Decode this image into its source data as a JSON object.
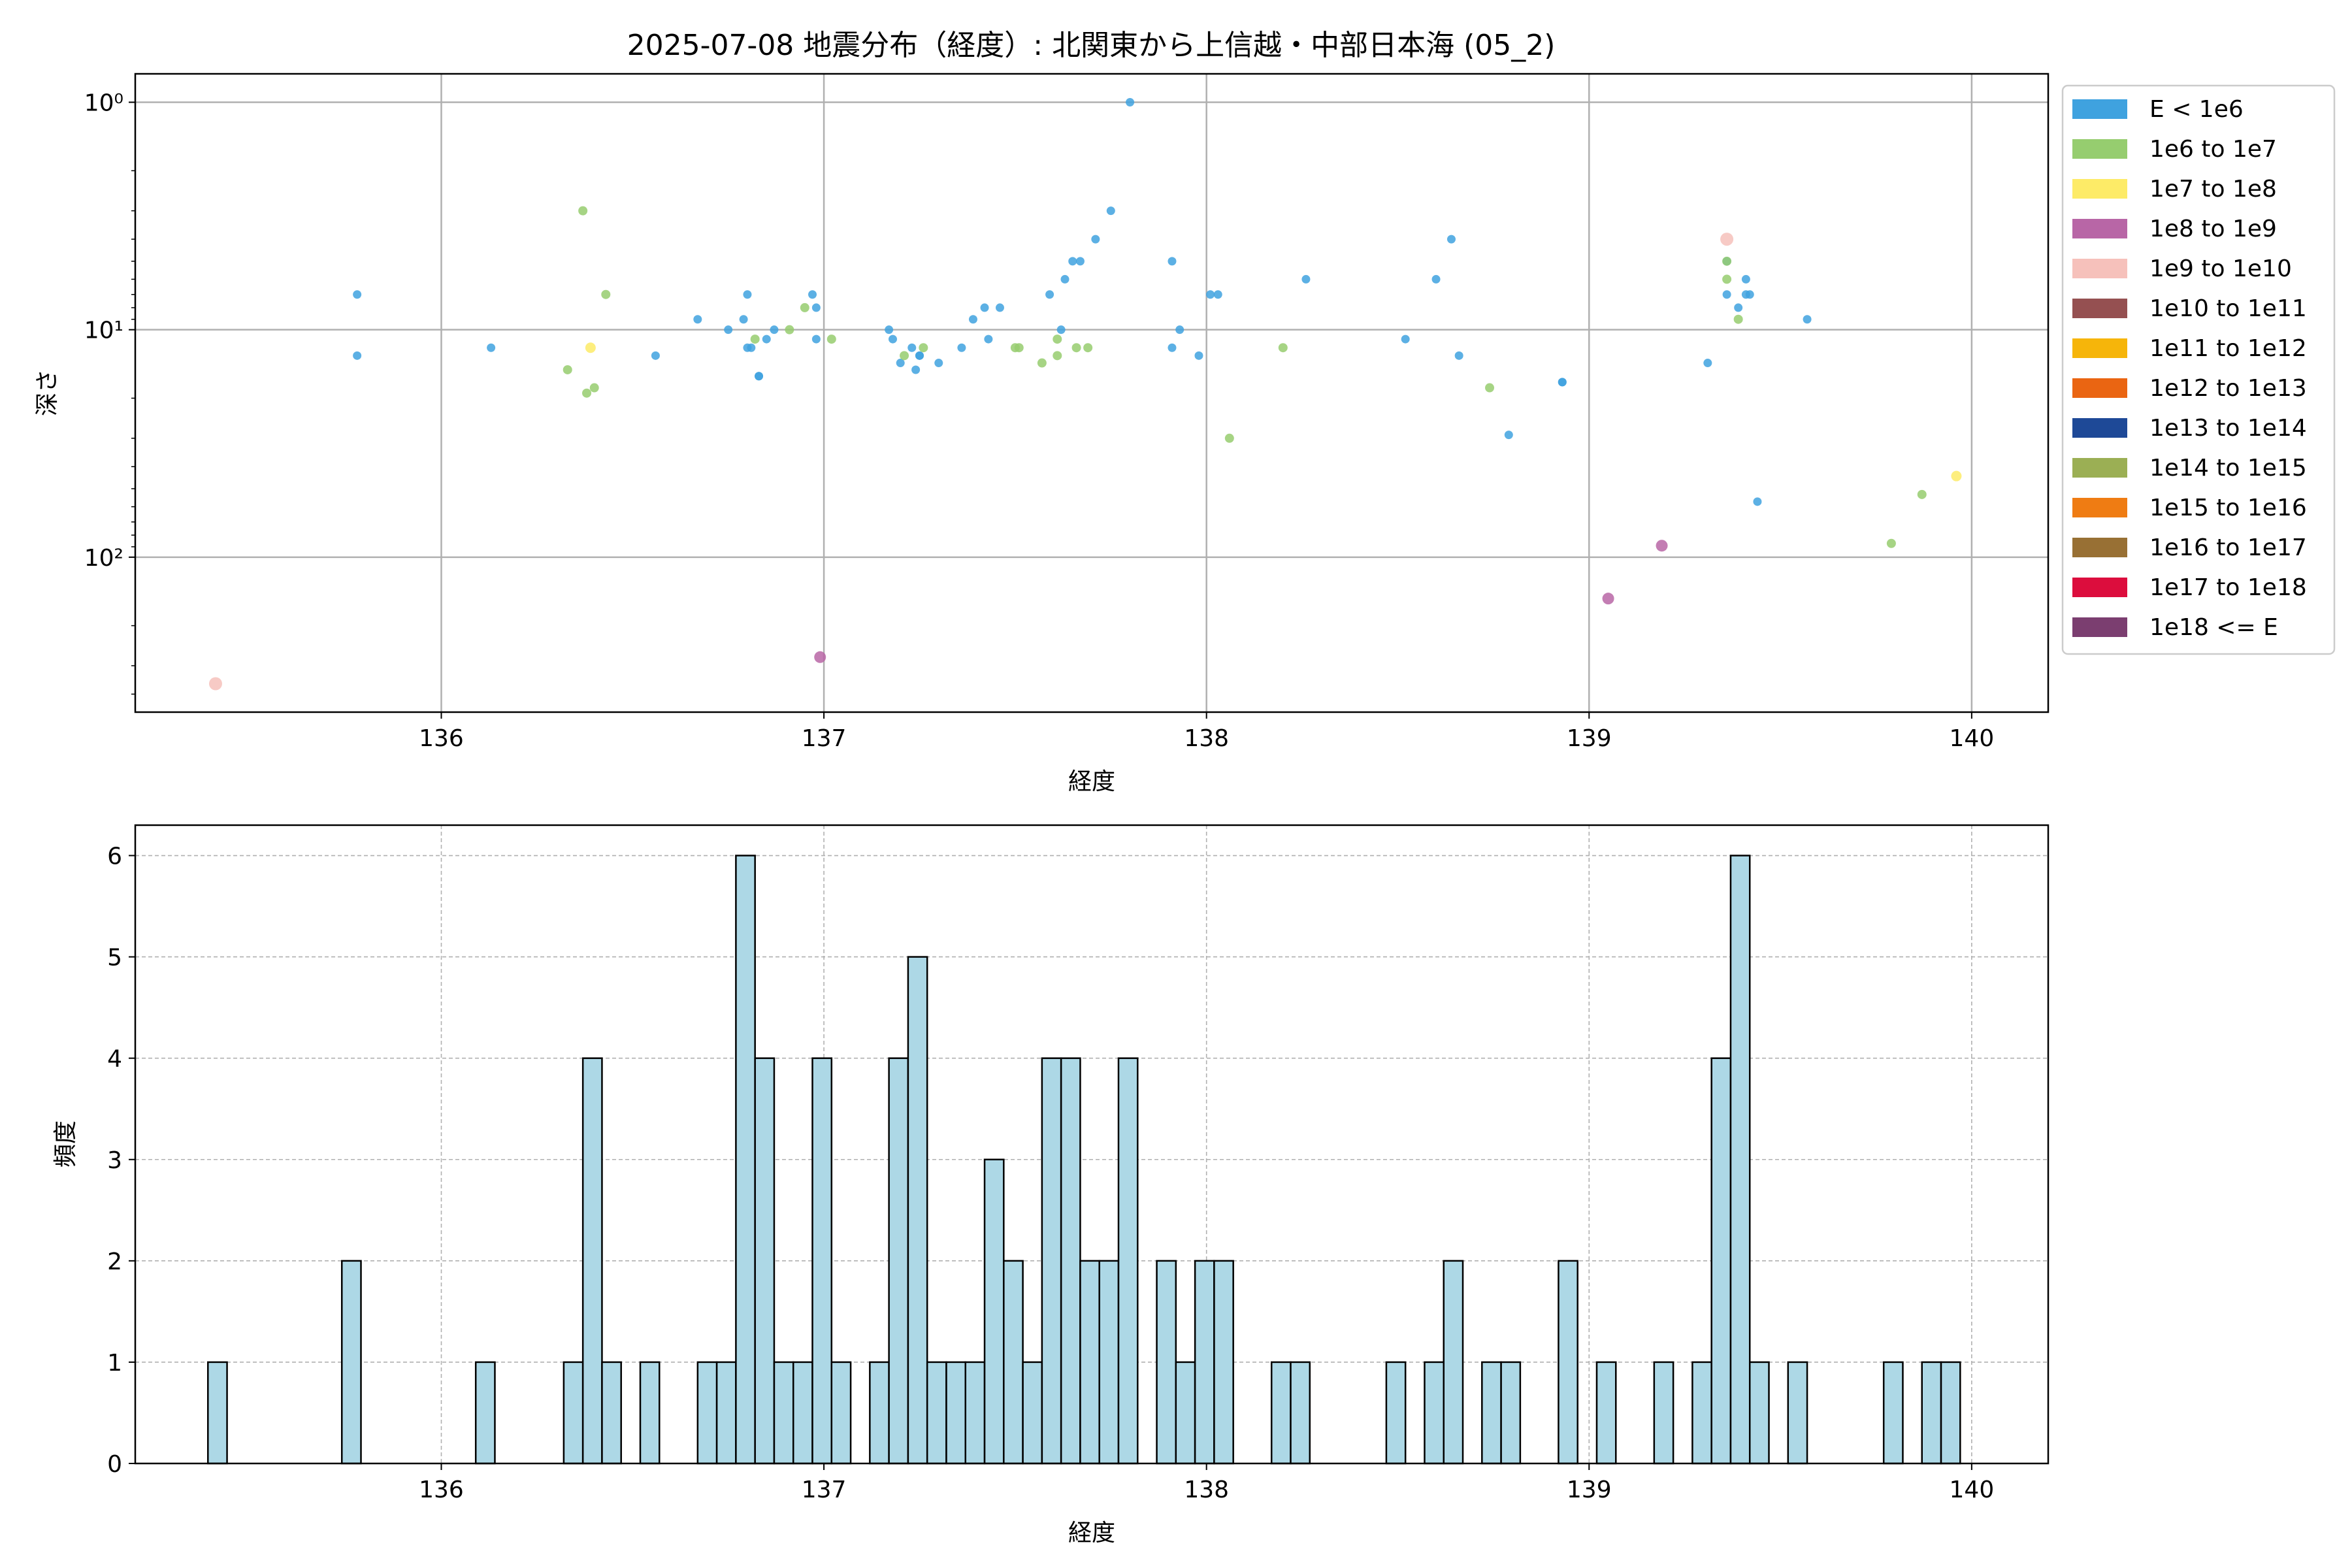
{
  "figure": {
    "title": "2025-07-08 地震分布（経度）: 北関東から上信越・中部日本海 (05_2)"
  },
  "chart_data": [
    {
      "type": "scatter",
      "title": "2025-07-08 地震分布（経度）: 北関東から上信越・中部日本海 (05_2)",
      "xlabel": "経度",
      "ylabel": "深さ",
      "xlim": [
        135.2,
        140.2
      ],
      "ylim": [
        480,
        0.75
      ],
      "y_scale": "log",
      "y_inverted": true,
      "grid": true,
      "x_ticks": [
        136,
        137,
        138,
        139,
        140
      ],
      "y_ticks": [
        {
          "value": 1,
          "label": "10⁰"
        },
        {
          "value": 10,
          "label": "10¹"
        },
        {
          "value": 100,
          "label": "10²"
        }
      ],
      "legend": {
        "placement": "outside-right",
        "entries": [
          {
            "label": "E < 1e6",
            "color": "#3fa2df"
          },
          {
            "label": "1e6 to 1e7",
            "color": "#96cd6f"
          },
          {
            "label": "1e7 to 1e8",
            "color": "#fdeb67"
          },
          {
            "label": "1e8 to 1e9",
            "color": "#b866a6"
          },
          {
            "label": "1e9 to 1e10",
            "color": "#f6c1bb"
          },
          {
            "label": "1e10 to 1e11",
            "color": "#955051"
          },
          {
            "label": "1e11 to 1e12",
            "color": "#f6b50a"
          },
          {
            "label": "1e12 to 1e13",
            "color": "#ea6512"
          },
          {
            "label": "1e13 to 1e14",
            "color": "#1e4997"
          },
          {
            "label": "1e14 to 1e15",
            "color": "#9baf54"
          },
          {
            "label": "1e15 to 1e16",
            "color": "#ef7c13"
          },
          {
            "label": "1e16 to 1e17",
            "color": "#987034"
          },
          {
            "label": "1e17 to 1e18",
            "color": "#dc0d3d"
          },
          {
            "label": "1e18 <= E",
            "color": "#7b3e70"
          }
        ]
      },
      "series": [
        {
          "name": "E < 1e6",
          "points": [
            [
              135.78,
              7
            ],
            [
              135.78,
              13
            ],
            [
              136.13,
              12
            ],
            [
              136.56,
              13
            ],
            [
              136.67,
              9
            ],
            [
              136.75,
              10
            ],
            [
              136.79,
              9
            ],
            [
              136.8,
              7
            ],
            [
              136.8,
              12
            ],
            [
              136.81,
              12
            ],
            [
              136.83,
              16
            ],
            [
              136.83,
              16
            ],
            [
              136.85,
              11
            ],
            [
              136.87,
              10
            ],
            [
              136.97,
              7
            ],
            [
              136.98,
              8
            ],
            [
              136.98,
              11
            ],
            [
              137.17,
              10
            ],
            [
              137.18,
              11
            ],
            [
              137.2,
              14
            ],
            [
              137.23,
              12
            ],
            [
              137.24,
              15
            ],
            [
              137.25,
              13
            ],
            [
              137.25,
              13
            ],
            [
              137.3,
              14
            ],
            [
              137.36,
              12
            ],
            [
              137.39,
              9
            ],
            [
              137.42,
              8
            ],
            [
              137.43,
              11
            ],
            [
              137.46,
              8
            ],
            [
              137.59,
              7
            ],
            [
              137.62,
              10
            ],
            [
              137.63,
              6
            ],
            [
              137.65,
              5
            ],
            [
              137.67,
              5
            ],
            [
              137.71,
              4
            ],
            [
              137.75,
              3
            ],
            [
              137.8,
              1
            ],
            [
              137.91,
              5
            ],
            [
              137.91,
              12
            ],
            [
              137.93,
              10
            ],
            [
              137.98,
              13
            ],
            [
              138.01,
              7
            ],
            [
              138.03,
              7
            ],
            [
              138.26,
              6
            ],
            [
              138.52,
              11
            ],
            [
              138.6,
              6
            ],
            [
              138.64,
              4
            ],
            [
              138.66,
              13
            ],
            [
              138.79,
              29
            ],
            [
              138.93,
              17
            ],
            [
              138.93,
              17
            ],
            [
              139.31,
              14
            ],
            [
              139.36,
              5
            ],
            [
              139.36,
              7
            ],
            [
              139.39,
              8
            ],
            [
              139.41,
              6
            ],
            [
              139.41,
              7
            ],
            [
              139.42,
              7
            ],
            [
              139.44,
              57
            ],
            [
              139.57,
              9
            ]
          ]
        },
        {
          "name": "1e6 to 1e7",
          "points": [
            [
              136.33,
              15
            ],
            [
              136.37,
              3
            ],
            [
              136.38,
              19
            ],
            [
              136.4,
              18
            ],
            [
              136.43,
              7
            ],
            [
              136.82,
              11
            ],
            [
              136.91,
              10
            ],
            [
              136.95,
              8
            ],
            [
              137.02,
              11
            ],
            [
              137.21,
              13
            ],
            [
              137.26,
              12
            ],
            [
              137.5,
              12
            ],
            [
              137.51,
              12
            ],
            [
              137.57,
              14
            ],
            [
              137.61,
              11
            ],
            [
              137.61,
              13
            ],
            [
              137.66,
              12
            ],
            [
              137.69,
              12
            ],
            [
              138.06,
              30
            ],
            [
              138.2,
              12
            ],
            [
              138.74,
              18
            ],
            [
              139.36,
              6
            ],
            [
              139.36,
              5
            ],
            [
              139.39,
              9
            ],
            [
              139.79,
              87
            ],
            [
              139.87,
              53
            ]
          ]
        },
        {
          "name": "1e7 to 1e8",
          "points": [
            [
              136.39,
              12
            ],
            [
              139.96,
              44
            ]
          ]
        },
        {
          "name": "1e8 to 1e9",
          "points": [
            [
              136.99,
              275
            ],
            [
              139.05,
              152
            ],
            [
              139.19,
              89
            ]
          ]
        },
        {
          "name": "1e9 to 1e10",
          "points": [
            [
              135.41,
              360
            ],
            [
              139.36,
              4
            ]
          ]
        }
      ]
    },
    {
      "type": "bar",
      "xlabel": "経度",
      "ylabel": "頻度",
      "xlim": [
        135.2,
        140.2
      ],
      "ylim": [
        0,
        6.3
      ],
      "grid": true,
      "x_ticks": [
        136,
        137,
        138,
        139,
        140
      ],
      "y_ticks": [
        0,
        1,
        2,
        3,
        4,
        5,
        6
      ],
      "bin_width": 0.05,
      "bar_color": "#add8e6",
      "edge_color": "#000000",
      "bins": [
        [
          135.39,
          1
        ],
        [
          135.74,
          2
        ],
        [
          136.09,
          1
        ],
        [
          136.32,
          1
        ],
        [
          136.37,
          4
        ],
        [
          136.42,
          1
        ],
        [
          136.52,
          1
        ],
        [
          136.67,
          1
        ],
        [
          136.72,
          1
        ],
        [
          136.77,
          6
        ],
        [
          136.82,
          4
        ],
        [
          136.87,
          1
        ],
        [
          136.92,
          1
        ],
        [
          136.97,
          4
        ],
        [
          137.02,
          1
        ],
        [
          137.12,
          1
        ],
        [
          137.17,
          4
        ],
        [
          137.22,
          5
        ],
        [
          137.27,
          1
        ],
        [
          137.32,
          1
        ],
        [
          137.37,
          1
        ],
        [
          137.42,
          3
        ],
        [
          137.47,
          2
        ],
        [
          137.52,
          1
        ],
        [
          137.57,
          4
        ],
        [
          137.62,
          4
        ],
        [
          137.67,
          2
        ],
        [
          137.72,
          2
        ],
        [
          137.77,
          4
        ],
        [
          137.87,
          2
        ],
        [
          137.92,
          1
        ],
        [
          137.97,
          2
        ],
        [
          138.02,
          2
        ],
        [
          138.17,
          1
        ],
        [
          138.22,
          1
        ],
        [
          138.47,
          1
        ],
        [
          138.57,
          1
        ],
        [
          138.62,
          2
        ],
        [
          138.72,
          1
        ],
        [
          138.77,
          1
        ],
        [
          138.92,
          2
        ],
        [
          139.02,
          1
        ],
        [
          139.17,
          1
        ],
        [
          139.27,
          1
        ],
        [
          139.32,
          4
        ],
        [
          139.37,
          6
        ],
        [
          139.42,
          1
        ],
        [
          139.52,
          1
        ],
        [
          139.77,
          1
        ],
        [
          139.87,
          1
        ],
        [
          139.92,
          1
        ]
      ]
    }
  ]
}
